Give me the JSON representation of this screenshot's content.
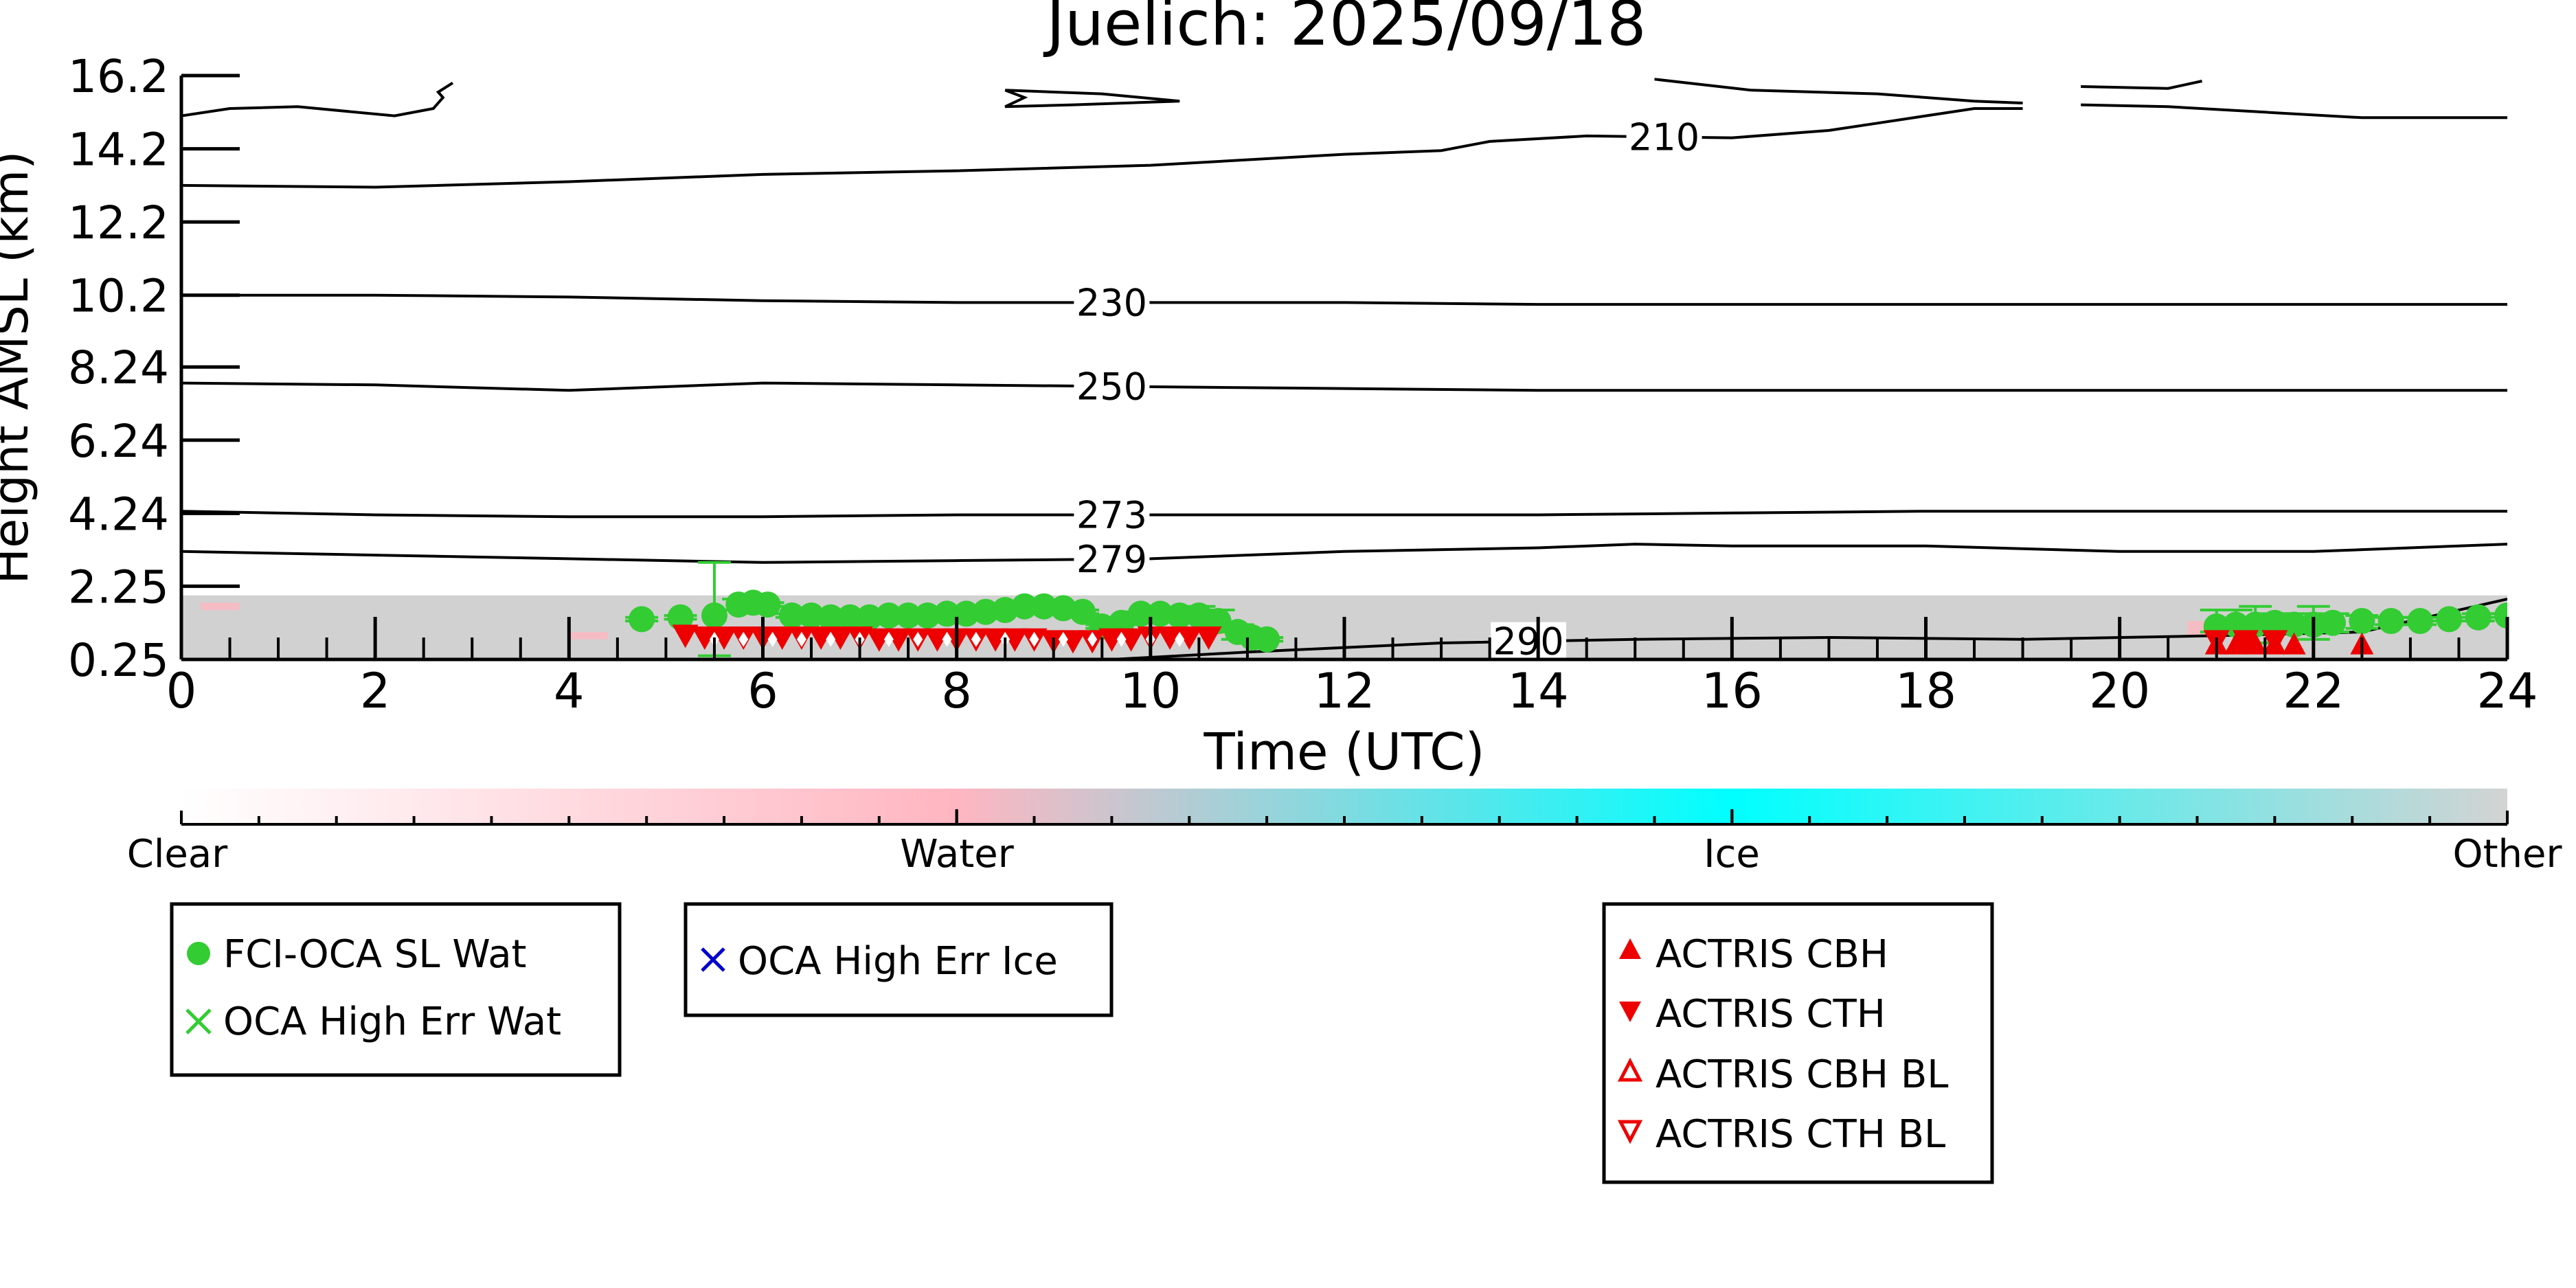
{
  "chart_data": {
    "type": "scatter",
    "title": "Juelich: 2025/09/18",
    "xlabel": "Time (UTC)",
    "ylabel": "Height AMSL (km)",
    "xlim": [
      0,
      24
    ],
    "ylim": [
      0.25,
      16.2
    ],
    "x_ticks": [
      "0",
      "2",
      "4",
      "6",
      "8",
      "10",
      "12",
      "14",
      "16",
      "18",
      "20",
      "22",
      "24"
    ],
    "y_ticks": [
      {
        "label": "16.2",
        "value": 16.2
      },
      {
        "label": "14.2",
        "value": 14.2
      },
      {
        "label": "12.2",
        "value": 12.2
      },
      {
        "label": "10.2",
        "value": 10.2
      },
      {
        "label": "8.24",
        "value": 8.24
      },
      {
        "label": "6.24",
        "value": 6.24
      },
      {
        "label": "4.24",
        "value": 4.24
      },
      {
        "label": "2.25",
        "value": 2.25
      },
      {
        "label": "0.25",
        "value": 0.25
      }
    ],
    "grid": false,
    "temperature_contours": [
      {
        "label": "210",
        "label_x": 15.3,
        "segments": [
          [
            [
              0,
              13.2
            ],
            [
              2,
              13.15
            ],
            [
              4,
              13.3
            ],
            [
              6,
              13.5
            ],
            [
              8,
              13.6
            ],
            [
              10,
              13.75
            ],
            [
              12,
              14.05
            ],
            [
              13,
              14.15
            ],
            [
              13.5,
              14.4
            ],
            [
              14.5,
              14.55
            ],
            [
              16,
              14.5
            ],
            [
              17,
              14.7
            ],
            [
              17.5,
              14.9
            ],
            [
              18.5,
              15.3
            ],
            [
              19,
              15.3
            ]
          ],
          [
            [
              19.6,
              15.4
            ],
            [
              20.5,
              15.35
            ],
            [
              21.5,
              15.2
            ],
            [
              22.5,
              15.05
            ],
            [
              24,
              15.05
            ]
          ],
          [
            [
              0,
              15.1
            ],
            [
              0.5,
              15.3
            ],
            [
              1.2,
              15.35
            ],
            [
              2.2,
              15.1
            ],
            [
              2.6,
              15.3
            ],
            [
              2.7,
              15.6
            ],
            [
              2.65,
              15.75
            ],
            [
              2.8,
              16.0
            ]
          ],
          [
            [
              8.5,
              15.8
            ],
            [
              9.5,
              15.7
            ],
            [
              10.3,
              15.5
            ],
            [
              9.2,
              15.4
            ],
            [
              8.5,
              15.35
            ],
            [
              8.7,
              15.6
            ],
            [
              8.5,
              15.8
            ]
          ],
          [
            [
              15.2,
              16.1
            ],
            [
              16.2,
              15.8
            ],
            [
              17.5,
              15.7
            ],
            [
              18.5,
              15.5
            ],
            [
              19.0,
              15.45
            ]
          ],
          [
            [
              19.6,
              15.9
            ],
            [
              20.5,
              15.85
            ],
            [
              20.85,
              16.05
            ]
          ]
        ]
      },
      {
        "label": "230",
        "label_x": 9.6,
        "segments": [
          [
            [
              0,
              10.2
            ],
            [
              2,
              10.2
            ],
            [
              4,
              10.15
            ],
            [
              6,
              10.05
            ],
            [
              8,
              10.0
            ],
            [
              10,
              10.0
            ],
            [
              12,
              10.0
            ],
            [
              14,
              9.95
            ],
            [
              16,
              9.95
            ],
            [
              18,
              9.95
            ],
            [
              20,
              9.95
            ],
            [
              22,
              9.95
            ],
            [
              24,
              9.95
            ]
          ]
        ]
      },
      {
        "label": "250",
        "label_x": 9.6,
        "segments": [
          [
            [
              0,
              7.8
            ],
            [
              2,
              7.75
            ],
            [
              4,
              7.6
            ],
            [
              6,
              7.8
            ],
            [
              8,
              7.75
            ],
            [
              10,
              7.7
            ],
            [
              12,
              7.65
            ],
            [
              14,
              7.6
            ],
            [
              16,
              7.6
            ],
            [
              18,
              7.6
            ],
            [
              20,
              7.6
            ],
            [
              22,
              7.6
            ],
            [
              24,
              7.6
            ]
          ]
        ]
      },
      {
        "label": "273",
        "label_x": 9.6,
        "segments": [
          [
            [
              0,
              4.3
            ],
            [
              2,
              4.2
            ],
            [
              4,
              4.15
            ],
            [
              6,
              4.15
            ],
            [
              8,
              4.2
            ],
            [
              10,
              4.2
            ],
            [
              12,
              4.2
            ],
            [
              14,
              4.2
            ],
            [
              16,
              4.25
            ],
            [
              18,
              4.3
            ],
            [
              20,
              4.3
            ],
            [
              22,
              4.3
            ],
            [
              24,
              4.3
            ]
          ]
        ]
      },
      {
        "label": "279",
        "label_x": 9.6,
        "segments": [
          [
            [
              0,
              3.2
            ],
            [
              2,
              3.1
            ],
            [
              4,
              3.0
            ],
            [
              6,
              2.9
            ],
            [
              8,
              2.95
            ],
            [
              10,
              3.0
            ],
            [
              12,
              3.2
            ],
            [
              14,
              3.3
            ],
            [
              15,
              3.4
            ],
            [
              16,
              3.35
            ],
            [
              18,
              3.35
            ],
            [
              20,
              3.2
            ],
            [
              22,
              3.2
            ],
            [
              24,
              3.4
            ]
          ]
        ]
      },
      {
        "label": "290",
        "label_x": 13.9,
        "segments": [
          [
            [
              9.6,
              0.25
            ],
            [
              11,
              0.45
            ],
            [
              13,
              0.7
            ],
            [
              15,
              0.8
            ],
            [
              17,
              0.85
            ],
            [
              19,
              0.8
            ],
            [
              21,
              0.9
            ],
            [
              22.5,
              1.0
            ],
            [
              24,
              1.9
            ]
          ]
        ]
      }
    ],
    "series": [
      {
        "name": "FCI-OCA SL Wat",
        "color": "#33cc33",
        "marker": "circle",
        "x": [
          4.75,
          5.15,
          5.5,
          5.75,
          5.9,
          6.05,
          6.3,
          6.5,
          6.7,
          6.9,
          7.1,
          7.3,
          7.5,
          7.7,
          7.9,
          8.1,
          8.3,
          8.5,
          8.7,
          8.9,
          9.1,
          9.3,
          9.5,
          9.7,
          9.9,
          10.1,
          10.3,
          10.5,
          10.7,
          10.9,
          11.05,
          11.2,
          21.0,
          21.2,
          21.4,
          21.6,
          21.8,
          22.0,
          22.2,
          22.5,
          22.8,
          23.1,
          23.4,
          23.7,
          24.0
        ],
        "y": [
          1.35,
          1.4,
          1.45,
          1.75,
          1.8,
          1.75,
          1.45,
          1.45,
          1.4,
          1.4,
          1.4,
          1.45,
          1.45,
          1.45,
          1.5,
          1.5,
          1.55,
          1.6,
          1.7,
          1.7,
          1.65,
          1.55,
          1.15,
          1.25,
          1.5,
          1.5,
          1.45,
          1.45,
          1.3,
          1.0,
          0.85,
          0.8,
          1.15,
          1.2,
          1.2,
          1.25,
          1.2,
          1.2,
          1.25,
          1.3,
          1.3,
          1.3,
          1.35,
          1.4,
          1.45
        ],
        "err_low": [
          1.3,
          1.35,
          0.35,
          1.6,
          1.7,
          1.7,
          1.4,
          1.4,
          1.35,
          1.35,
          1.35,
          1.4,
          1.4,
          1.4,
          1.45,
          1.45,
          1.5,
          1.55,
          1.65,
          1.65,
          1.6,
          1.5,
          1.1,
          1.2,
          1.45,
          1.45,
          1.4,
          1.35,
          1.0,
          0.8,
          0.8,
          0.75,
          1.0,
          1.0,
          0.7,
          1.0,
          1.0,
          0.8,
          1.0,
          1.1,
          1.2,
          1.2,
          1.3,
          1.3,
          1.4
        ],
        "err_high": [
          1.4,
          1.45,
          2.9,
          1.9,
          1.9,
          1.8,
          1.5,
          1.5,
          1.45,
          1.45,
          1.45,
          1.5,
          1.5,
          1.5,
          1.55,
          1.55,
          1.6,
          1.65,
          1.75,
          1.75,
          1.7,
          1.6,
          1.2,
          1.3,
          1.55,
          1.55,
          1.5,
          1.7,
          1.6,
          1.2,
          0.9,
          0.85,
          1.6,
          1.6,
          1.7,
          1.5,
          1.5,
          1.7,
          1.5,
          1.45,
          1.4,
          1.4,
          1.4,
          1.5,
          1.5
        ]
      },
      {
        "name": "OCA High Err Wat",
        "color": "#33cc33",
        "marker": "x",
        "x": [],
        "y": []
      },
      {
        "name": "OCA High Err Ice",
        "color": "#0000cc",
        "marker": "x",
        "x": [],
        "y": []
      },
      {
        "name": "ACTRIS CBH",
        "color": "#ee0000",
        "marker": "triangle-up",
        "x": [
          21.0,
          21.2,
          21.4,
          21.6,
          21.8,
          22.5
        ],
        "y": [
          0.65,
          0.65,
          0.65,
          0.65,
          0.65,
          0.65
        ]
      },
      {
        "name": "ACTRIS CTH",
        "color": "#ee0000",
        "marker": "triangle-down",
        "x": [
          5.2,
          5.4,
          5.6,
          5.8,
          6.0,
          6.2,
          6.4,
          6.6,
          6.8,
          7.0,
          7.2,
          7.4,
          7.6,
          7.8,
          8.0,
          8.2,
          8.4,
          8.6,
          8.8,
          9.0,
          9.2,
          9.4,
          9.6,
          9.8,
          10.0,
          10.2,
          10.4,
          10.6,
          21.0,
          21.3,
          21.6
        ],
        "y": [
          0.9,
          0.85,
          0.85,
          0.85,
          0.85,
          0.85,
          0.85,
          0.85,
          0.85,
          0.85,
          0.8,
          0.8,
          0.8,
          0.8,
          0.8,
          0.8,
          0.8,
          0.8,
          0.8,
          0.75,
          0.75,
          0.75,
          0.8,
          0.8,
          0.85,
          0.85,
          0.85,
          0.85,
          0.75,
          0.75,
          0.75
        ]
      },
      {
        "name": "ACTRIS CBH BL",
        "color": "#ee0000",
        "marker": "triangle-up-open",
        "x": [],
        "y": []
      },
      {
        "name": "ACTRIS CTH BL",
        "color": "#ee0000",
        "marker": "triangle-down-open",
        "x": [],
        "y": []
      }
    ],
    "white_diamond_x": [
      5.5,
      5.8,
      6.1,
      6.4,
      6.7,
      7.0,
      7.3,
      7.6,
      7.9,
      8.2,
      8.5,
      8.8,
      9.1,
      9.4,
      9.7,
      10.0,
      10.3
    ],
    "white_diamond_y": 0.8,
    "background_ranges": [
      {
        "x": [
          0,
          24
        ],
        "top": 2.0,
        "color": "#cccccc"
      }
    ],
    "pink_patches": [
      {
        "x": [
          0.2,
          0.6
        ],
        "y": [
          1.6,
          1.8
        ]
      },
      {
        "x": [
          4.0,
          4.4
        ],
        "y": [
          0.8,
          1.0
        ]
      },
      {
        "x": [
          10.4,
          10.8
        ],
        "y": [
          0.9,
          1.1
        ]
      },
      {
        "x": [
          20.7,
          21.9
        ],
        "y": [
          0.9,
          1.3
        ]
      }
    ],
    "colorbar": {
      "labels": [
        "Clear",
        "Water",
        "Ice",
        "Other"
      ],
      "stops": [
        "#ffffff",
        "#ffb6c1",
        "#00ffff",
        "#d3d3d3"
      ],
      "minor_ticks": 30
    },
    "legends": [
      [
        "FCI-OCA SL Wat",
        "OCA High Err Wat"
      ],
      [
        "OCA High Err Ice"
      ],
      [
        "ACTRIS CBH",
        "ACTRIS CTH",
        "ACTRIS CBH BL",
        "ACTRIS CTH BL"
      ]
    ]
  }
}
